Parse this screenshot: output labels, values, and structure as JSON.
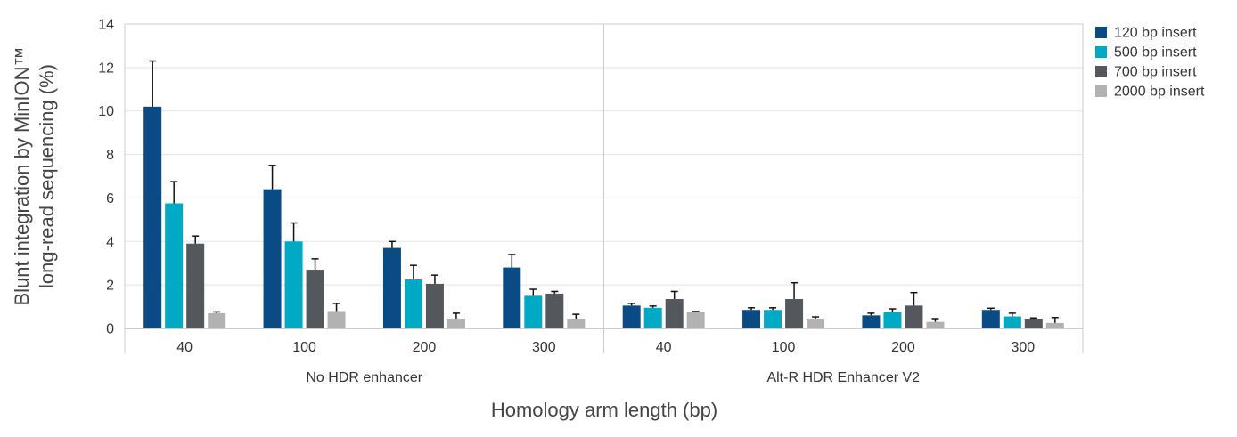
{
  "chart_data": {
    "type": "bar",
    "xlabel": "Homology arm length (bp)",
    "ylabel_line1": "Blunt integration by MinION™",
    "ylabel_line2": "long-read sequencing (%)",
    "ylim": [
      0,
      14
    ],
    "yticks": [
      "0",
      "2",
      "4",
      "6",
      "8",
      "10",
      "12",
      "14"
    ],
    "grid": true,
    "legend_position": "right",
    "groups": [
      {
        "label": "No HDR enhancer",
        "categories": [
          "40",
          "100",
          "200",
          "300"
        ]
      },
      {
        "label": "Alt-R HDR Enhancer V2",
        "categories": [
          "40",
          "100",
          "200",
          "300"
        ]
      }
    ],
    "series": [
      {
        "name": "120 bp insert",
        "color": "#0a4a85",
        "values": [
          10.2,
          6.4,
          3.7,
          2.8,
          1.05,
          0.85,
          0.6,
          0.85
        ],
        "errors": [
          2.1,
          1.1,
          0.3,
          0.6,
          0.1,
          0.1,
          0.1,
          0.08
        ]
      },
      {
        "name": "500 bp insert",
        "color": "#00a9c4",
        "values": [
          5.75,
          4.0,
          2.25,
          1.5,
          0.95,
          0.85,
          0.75,
          0.55
        ],
        "errors": [
          1.0,
          0.85,
          0.65,
          0.3,
          0.08,
          0.1,
          0.15,
          0.15
        ]
      },
      {
        "name": "700 bp insert",
        "color": "#54585c",
        "values": [
          3.9,
          2.7,
          2.05,
          1.6,
          1.35,
          1.35,
          1.05,
          0.45
        ],
        "errors": [
          0.35,
          0.5,
          0.4,
          0.1,
          0.35,
          0.75,
          0.6,
          0.03
        ]
      },
      {
        "name": "2000 bp insert",
        "color": "#b2b2b2",
        "values": [
          0.7,
          0.8,
          0.45,
          0.45,
          0.75,
          0.45,
          0.3,
          0.25
        ],
        "errors": [
          0.06,
          0.35,
          0.25,
          0.2,
          0.03,
          0.08,
          0.15,
          0.25
        ]
      }
    ]
  }
}
